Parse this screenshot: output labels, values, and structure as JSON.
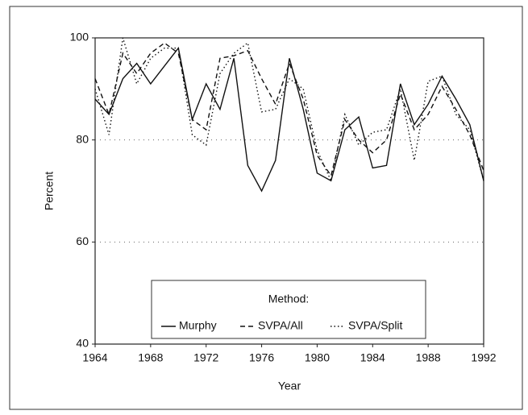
{
  "chart_data": {
    "type": "line",
    "xlabel": "Year",
    "ylabel": "Percent",
    "legend_title": "Method:",
    "legend": "bottom-center",
    "grid": true,
    "x": [
      1964,
      1965,
      1966,
      1967,
      1968,
      1969,
      1970,
      1971,
      1972,
      1973,
      1974,
      1975,
      1976,
      1977,
      1978,
      1979,
      1980,
      1981,
      1982,
      1983,
      1984,
      1985,
      1986,
      1987,
      1988,
      1989,
      1990,
      1991,
      1992
    ],
    "xlim": [
      1964,
      1992
    ],
    "xticks": [
      1964,
      1968,
      1972,
      1976,
      1980,
      1984,
      1988,
      1992
    ],
    "ylim": [
      40,
      100
    ],
    "yticks": [
      40,
      60,
      80,
      100
    ],
    "series": [
      {
        "name": "Murphy",
        "color": "#111111",
        "dash": "solid",
        "values": [
          88,
          85,
          92,
          95,
          91,
          94.5,
          98,
          84,
          91,
          86,
          96,
          75,
          70,
          76,
          96,
          86,
          73.5,
          72,
          82,
          84.5,
          74.5,
          75,
          91,
          83,
          87,
          92.5,
          88,
          83,
          72
        ]
      },
      {
        "name": "SVPA/All",
        "color": "#111111",
        "dash": "dashed",
        "values": [
          92,
          85,
          97,
          93,
          97,
          99,
          97,
          84,
          82,
          96,
          96.5,
          97.5,
          92,
          87,
          95,
          88,
          77,
          73,
          84,
          80,
          77.5,
          80,
          89,
          82,
          85,
          90.5,
          86,
          81,
          74
        ]
      },
      {
        "name": "SVPA/Split",
        "color": "#111111",
        "dash": "dotted",
        "values": [
          90,
          81,
          100,
          91,
          96,
          98,
          98,
          81,
          79,
          93,
          97,
          99,
          85.5,
          86,
          92,
          90,
          78,
          72,
          85,
          79,
          81.5,
          82,
          90,
          76,
          91.5,
          92.5,
          85,
          82,
          72
        ]
      }
    ]
  }
}
